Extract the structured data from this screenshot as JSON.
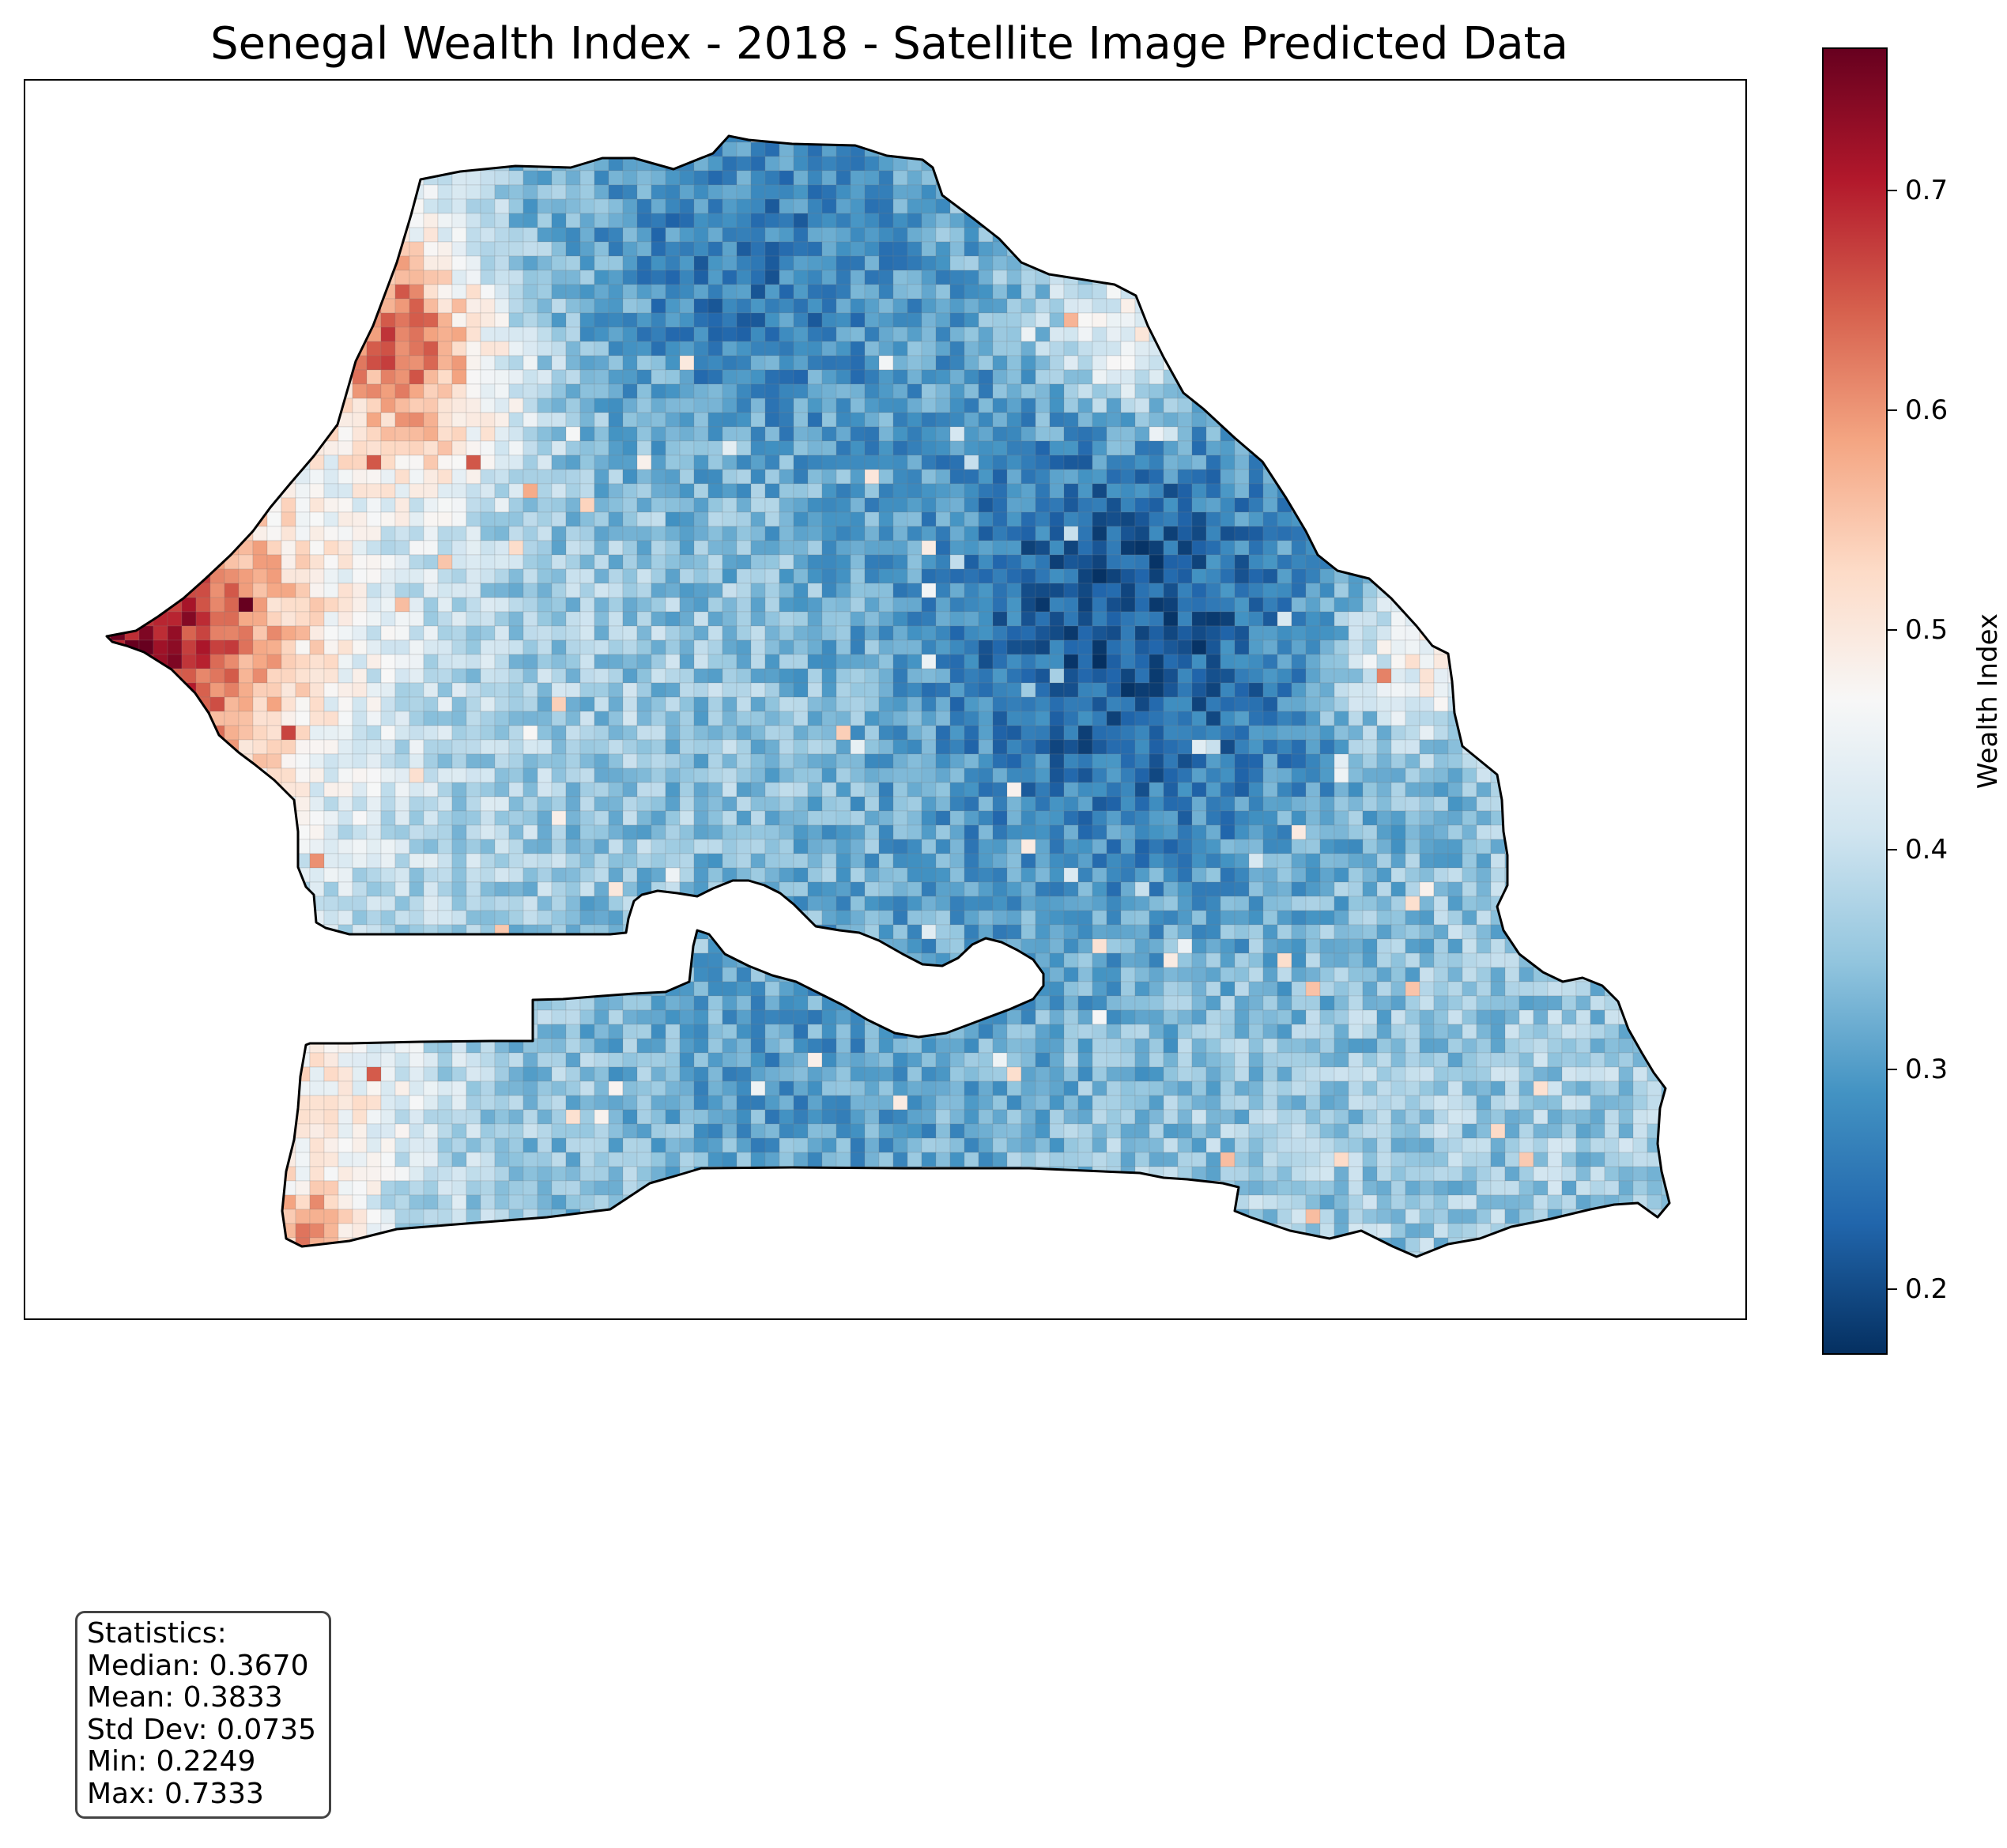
{
  "title": "Senegal Wealth Index - 2018 - Satellite Image Predicted Data",
  "colorbar": {
    "label": "Wealth Index",
    "colormap": "RdBu_r",
    "range": [
      0.17,
      0.765
    ],
    "ticks": [
      "0.2",
      "0.3",
      "0.4",
      "0.5",
      "0.6",
      "0.7"
    ],
    "tick_values": [
      0.2,
      0.3,
      0.4,
      0.5,
      0.6,
      0.7
    ],
    "gradient_colors": [
      "#053061",
      "#2166ac",
      "#4393c3",
      "#92c5de",
      "#d1e5f0",
      "#f7f7f7",
      "#fddbc7",
      "#f4a582",
      "#d6604d",
      "#b2182b",
      "#67001f"
    ]
  },
  "statistics": {
    "heading": "Statistics:",
    "median": "Median: 0.3670",
    "mean": "Mean: 0.3833",
    "std": "Std Dev: 0.0735",
    "min": "Min: 0.2249",
    "max": "Max: 0.7333"
  },
  "map": {
    "boundary_color": "#000000",
    "grid_line_color": "#7f7f7f",
    "background": "#ffffff"
  }
}
